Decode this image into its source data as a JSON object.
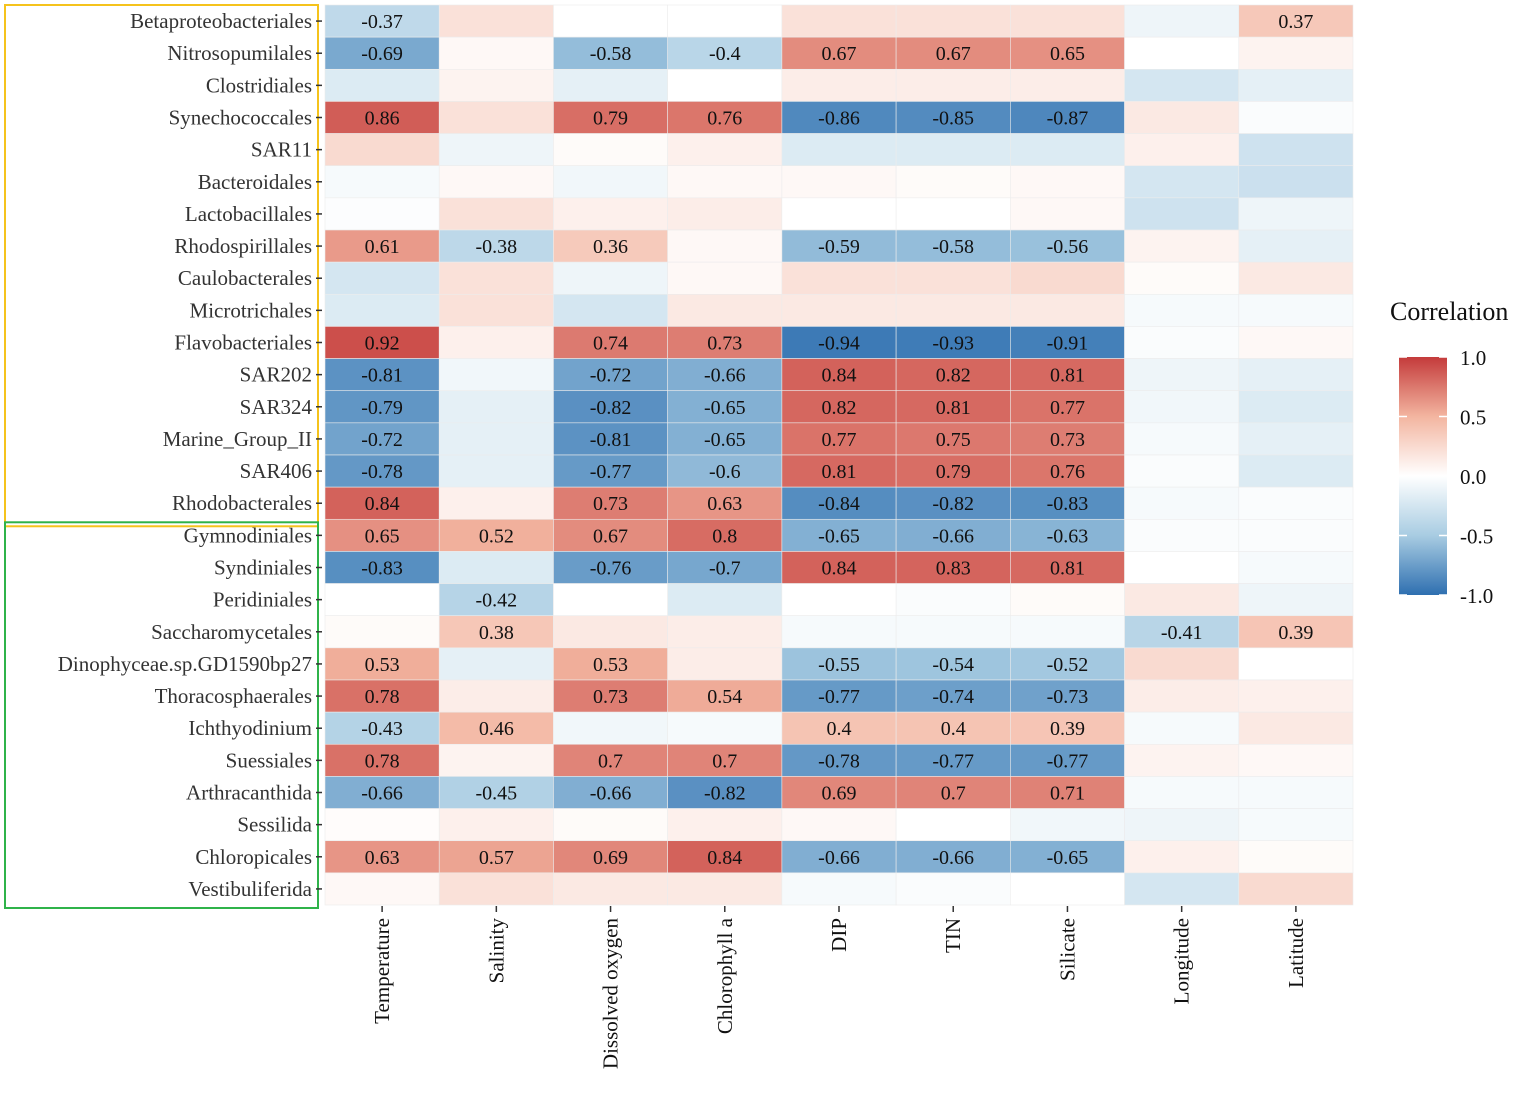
{
  "chart_data": {
    "type": "heatmap",
    "title": "",
    "xlabel": "",
    "ylabel": "",
    "legend": {
      "title": "Correlation",
      "position": "right",
      "ticks": [
        "1.0",
        "0.5",
        "0.0",
        "-0.5",
        "-1.0"
      ],
      "range": [
        -1,
        1
      ]
    },
    "colors": {
      "neg": "#2e6fb0",
      "neg_mid": "#a8cce2",
      "zero": "#ffffff",
      "pos_mid": "#f3b5a0",
      "pos": "#c43b3b",
      "group1_frame": "#f5c31c",
      "group2_frame": "#2fb34a"
    },
    "label_threshold": 0.35,
    "columns": [
      "Temperature",
      "Salinity",
      "Dissolved oxygen",
      "Chlorophyll a",
      "DIP",
      "TIN",
      "Silicate",
      "Longitude",
      "Latitude"
    ],
    "rows": [
      {
        "name": "Betaproteobacteriales",
        "group": 1,
        "values": [
          -0.37,
          0.2,
          0.0,
          0.0,
          0.2,
          0.2,
          0.2,
          -0.1,
          0.37
        ]
      },
      {
        "name": "Nitrosopumilales",
        "group": 1,
        "values": [
          -0.69,
          0.05,
          -0.58,
          -0.4,
          0.67,
          0.67,
          0.65,
          0.0,
          0.08
        ]
      },
      {
        "name": "Clostridiales",
        "group": 1,
        "values": [
          -0.2,
          0.08,
          -0.15,
          0.0,
          0.12,
          0.12,
          0.12,
          -0.25,
          -0.15
        ]
      },
      {
        "name": "Synechococcales",
        "group": 1,
        "values": [
          0.86,
          0.2,
          0.79,
          0.76,
          -0.86,
          -0.85,
          -0.87,
          0.15,
          -0.03
        ]
      },
      {
        "name": "SAR11",
        "group": 1,
        "values": [
          0.25,
          -0.1,
          0.03,
          0.1,
          -0.2,
          -0.2,
          -0.2,
          0.1,
          -0.28
        ]
      },
      {
        "name": "Bacteroidales",
        "group": 1,
        "values": [
          -0.05,
          0.05,
          -0.08,
          0.05,
          0.05,
          0.03,
          0.05,
          -0.25,
          -0.3
        ]
      },
      {
        "name": "Lactobacillales",
        "group": 1,
        "values": [
          -0.02,
          0.2,
          0.1,
          0.12,
          0.0,
          0.0,
          0.05,
          -0.28,
          -0.1
        ]
      },
      {
        "name": "Rhodospirillales",
        "group": 1,
        "values": [
          0.61,
          -0.38,
          0.36,
          0.05,
          -0.59,
          -0.58,
          -0.56,
          0.08,
          -0.15
        ]
      },
      {
        "name": "Caulobacterales",
        "group": 1,
        "values": [
          -0.25,
          0.2,
          -0.1,
          0.05,
          0.2,
          0.2,
          0.25,
          0.03,
          0.15
        ]
      },
      {
        "name": "Microtrichales",
        "group": 1,
        "values": [
          -0.2,
          0.2,
          -0.25,
          0.15,
          0.15,
          0.15,
          0.15,
          -0.05,
          -0.05
        ]
      },
      {
        "name": "Flavobacteriales",
        "group": 1,
        "values": [
          0.92,
          0.1,
          0.74,
          0.73,
          -0.94,
          -0.93,
          -0.91,
          -0.03,
          0.05
        ]
      },
      {
        "name": "SAR202",
        "group": 1,
        "values": [
          -0.81,
          -0.08,
          -0.72,
          -0.66,
          0.84,
          0.82,
          0.81,
          -0.1,
          -0.15
        ]
      },
      {
        "name": "SAR324",
        "group": 1,
        "values": [
          -0.79,
          -0.15,
          -0.82,
          -0.65,
          0.82,
          0.81,
          0.77,
          -0.08,
          -0.2
        ]
      },
      {
        "name": "Marine_Group_II",
        "group": 1,
        "values": [
          -0.72,
          -0.15,
          -0.81,
          -0.65,
          0.77,
          0.75,
          0.73,
          -0.05,
          -0.15
        ]
      },
      {
        "name": "SAR406",
        "group": 1,
        "values": [
          -0.78,
          -0.15,
          -0.77,
          -0.6,
          0.81,
          0.79,
          0.76,
          -0.03,
          -0.2
        ]
      },
      {
        "name": "Rhodobacterales",
        "group": 1,
        "values": [
          0.84,
          0.1,
          0.73,
          0.63,
          -0.84,
          -0.82,
          -0.83,
          -0.05,
          -0.03
        ]
      },
      {
        "name": "Gymnodiniales",
        "group": 2,
        "values": [
          0.65,
          0.52,
          0.67,
          0.8,
          -0.65,
          -0.66,
          -0.63,
          -0.03,
          -0.03
        ]
      },
      {
        "name": "Syndiniales",
        "group": 2,
        "values": [
          -0.83,
          -0.2,
          -0.76,
          -0.7,
          0.84,
          0.83,
          0.81,
          0.0,
          -0.05
        ]
      },
      {
        "name": "Peridiniales",
        "group": 2,
        "values": [
          0.0,
          -0.42,
          0.0,
          -0.2,
          0.0,
          -0.03,
          0.03,
          0.15,
          -0.1
        ]
      },
      {
        "name": "Saccharomycetales",
        "group": 2,
        "values": [
          0.03,
          0.38,
          0.15,
          0.12,
          -0.05,
          -0.05,
          -0.05,
          -0.41,
          0.39
        ]
      },
      {
        "name": "Dinophyceae.sp.GD1590bp27",
        "group": 2,
        "values": [
          0.53,
          -0.15,
          0.53,
          0.12,
          -0.55,
          -0.54,
          -0.52,
          0.25,
          0.0
        ]
      },
      {
        "name": "Thoracosphaerales",
        "group": 2,
        "values": [
          0.78,
          0.12,
          0.73,
          0.54,
          -0.77,
          -0.74,
          -0.73,
          0.12,
          0.1
        ]
      },
      {
        "name": "Ichthyodinium",
        "group": 2,
        "values": [
          -0.43,
          0.46,
          -0.08,
          -0.05,
          0.4,
          0.4,
          0.39,
          -0.05,
          0.15
        ]
      },
      {
        "name": "Suessiales",
        "group": 2,
        "values": [
          0.78,
          0.08,
          0.7,
          0.7,
          -0.78,
          -0.77,
          -0.77,
          0.08,
          0.05
        ]
      },
      {
        "name": "Arthracanthida",
        "group": 2,
        "values": [
          -0.66,
          -0.45,
          -0.66,
          -0.82,
          0.69,
          0.7,
          0.71,
          -0.05,
          -0.05
        ]
      },
      {
        "name": "Sessilida",
        "group": 2,
        "values": [
          0.02,
          0.1,
          0.03,
          0.1,
          0.05,
          0.0,
          -0.08,
          -0.1,
          -0.05
        ]
      },
      {
        "name": "Chloropicales",
        "group": 2,
        "values": [
          0.63,
          0.57,
          0.69,
          0.84,
          -0.66,
          -0.66,
          -0.65,
          0.1,
          0.03
        ]
      },
      {
        "name": "Vestibuliferida",
        "group": 2,
        "values": [
          0.05,
          0.2,
          0.15,
          0.15,
          -0.05,
          -0.03,
          0.0,
          -0.25,
          0.25
        ]
      }
    ]
  }
}
